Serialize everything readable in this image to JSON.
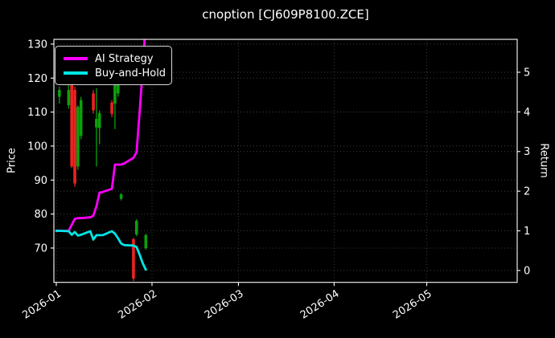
{
  "legend": {
    "position": "upper-left",
    "items": [
      {
        "label": "AI Strategy",
        "color": "#ff00ff"
      },
      {
        "label": "Buy-and-Hold",
        "color": "#00e6e6"
      }
    ]
  },
  "chart_data": {
    "type": "candlestick",
    "title": "cnoption [CJ609P8100.ZCE]",
    "grid": true,
    "x_axis": {
      "epoch": "2026-01-01",
      "start_day_offset": -0.78,
      "end_day_offset": 149.3,
      "tick_labels": [
        "2026-01",
        "2026-02",
        "2026-03",
        "2026-04",
        "2026-05"
      ],
      "tick_rotation_deg": -33
    },
    "price_axis": {
      "label": "Price",
      "ticks": [
        70,
        80,
        90,
        100,
        110,
        120,
        130
      ],
      "range": [
        59.9,
        131.4
      ]
    },
    "return_axis": {
      "label": "Return",
      "ticks": [
        0,
        1,
        2,
        3,
        4,
        5
      ],
      "range": [
        -0.3,
        5.83
      ]
    },
    "colors": {
      "up": "#0ca00c",
      "down": "#ee2222",
      "grid": "#3c3c3c",
      "frame": "#ffffff",
      "text": "#ffffff",
      "background": "#000000"
    },
    "candles": [
      {
        "date": "2026-01-02",
        "open": 114.5,
        "high": 117.5,
        "low": 112.5,
        "close": 116.5
      },
      {
        "date": "2026-01-05",
        "open": 112.0,
        "high": 118.5,
        "low": 111.0,
        "close": 116.5
      },
      {
        "date": "2026-01-06",
        "open": 118.2,
        "high": 119.0,
        "low": 93.5,
        "close": 94.0
      },
      {
        "date": "2026-01-07",
        "open": 116.5,
        "high": 117.5,
        "low": 88.0,
        "close": 89.0
      },
      {
        "date": "2026-01-08",
        "open": 94.0,
        "high": 112.0,
        "low": 93.0,
        "close": 111.5
      },
      {
        "date": "2026-01-09",
        "open": 103.0,
        "high": 114.5,
        "low": 102.0,
        "close": 113.5
      },
      {
        "date": "2026-01-13",
        "open": 115.5,
        "high": 116.5,
        "low": 109.5,
        "close": 110.5
      },
      {
        "date": "2026-01-14",
        "open": 105.5,
        "high": 117.0,
        "low": 94.0,
        "close": 108.0
      },
      {
        "date": "2026-01-15",
        "open": 105.3,
        "high": 110.5,
        "low": 100.5,
        "close": 109.7
      },
      {
        "date": "2026-01-19",
        "open": 112.8,
        "high": 113.5,
        "low": 108.5,
        "close": 109.5
      },
      {
        "date": "2026-01-20",
        "open": 112.5,
        "high": 119.5,
        "low": 105.0,
        "close": 119.0
      },
      {
        "date": "2026-01-21",
        "open": 115.5,
        "high": 118.5,
        "low": 114.5,
        "close": 118.0
      },
      {
        "date": "2026-01-22",
        "open": 84.5,
        "high": 86.2,
        "low": 84.0,
        "close": 85.8
      },
      {
        "date": "2026-01-26",
        "open": 72.6,
        "high": 73.0,
        "low": 60.3,
        "close": 61.0
      },
      {
        "date": "2026-01-27",
        "open": 74.0,
        "high": 78.5,
        "low": 73.5,
        "close": 78.0
      },
      {
        "date": "2026-01-30",
        "open": 70.0,
        "high": 74.2,
        "low": 69.5,
        "close": 73.8
      }
    ],
    "series": [
      {
        "name": "AI Strategy",
        "axis": "return",
        "color": "#ff00ff",
        "points": [
          [
            "2026-01-01",
            1.0
          ],
          [
            "2026-01-02",
            1.0
          ],
          [
            "2026-01-05",
            1.0
          ],
          [
            "2026-01-06",
            1.15
          ],
          [
            "2026-01-07",
            1.3
          ],
          [
            "2026-01-08",
            1.32
          ],
          [
            "2026-01-09",
            1.32
          ],
          [
            "2026-01-12",
            1.34
          ],
          [
            "2026-01-13",
            1.38
          ],
          [
            "2026-01-14",
            1.62
          ],
          [
            "2026-01-15",
            1.96
          ],
          [
            "2026-01-16",
            1.98
          ],
          [
            "2026-01-19",
            2.06
          ],
          [
            "2026-01-20",
            2.67
          ],
          [
            "2026-01-21",
            2.67
          ],
          [
            "2026-01-22",
            2.67
          ],
          [
            "2026-01-23",
            2.7
          ],
          [
            "2026-01-26",
            2.84
          ],
          [
            "2026-01-27",
            2.98
          ],
          [
            "2026-01-28",
            4.0
          ],
          [
            "2026-01-29",
            5.1
          ],
          [
            "2026-01-30",
            6.3
          ]
        ]
      },
      {
        "name": "Buy-and-Hold",
        "axis": "return",
        "color": "#00e6e6",
        "points": [
          [
            "2026-01-01",
            1.0
          ],
          [
            "2026-01-02",
            1.0
          ],
          [
            "2026-01-05",
            0.99
          ],
          [
            "2026-01-06",
            0.9
          ],
          [
            "2026-01-07",
            0.97
          ],
          [
            "2026-01-08",
            0.88
          ],
          [
            "2026-01-09",
            0.9
          ],
          [
            "2026-01-12",
            0.99
          ],
          [
            "2026-01-13",
            0.78
          ],
          [
            "2026-01-14",
            0.89
          ],
          [
            "2026-01-15",
            0.89
          ],
          [
            "2026-01-16",
            0.89
          ],
          [
            "2026-01-19",
            0.99
          ],
          [
            "2026-01-20",
            0.93
          ],
          [
            "2026-01-21",
            0.81
          ],
          [
            "2026-01-22",
            0.68
          ],
          [
            "2026-01-23",
            0.64
          ],
          [
            "2026-01-26",
            0.63
          ],
          [
            "2026-01-27",
            0.59
          ],
          [
            "2026-01-28",
            0.4
          ],
          [
            "2026-01-29",
            0.18
          ],
          [
            "2026-01-30",
            0.02
          ]
        ]
      }
    ]
  }
}
